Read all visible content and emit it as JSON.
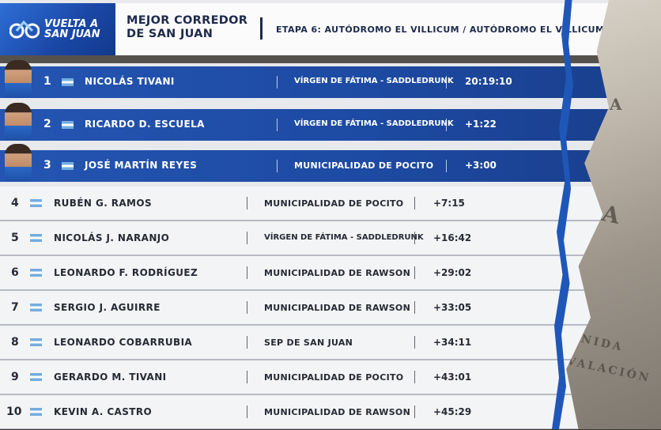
{
  "logo": {
    "line1": "VUELTA A",
    "line2": "SAN JUAN"
  },
  "header": {
    "title_line1": "MEJOR CORREDOR",
    "title_line2": "DE SAN JUAN",
    "stage": "ETAPA 6: AUTÓDROMO EL VILLICUM / AUTÓDROMO EL VILLICUM"
  },
  "background_map": {
    "text1": "MBA",
    "text2": "EGA",
    "text3": "ENIDA",
    "text4": "VALACIÓN"
  },
  "colors": {
    "brand_blue": "#1d4aa2",
    "header_text": "#1d2a4a",
    "flag_blue": "#74acdf"
  },
  "podium": [
    {
      "position": "1",
      "name": "Nicolás Tivani",
      "team": "Vírgen de Fátima - Saddledrunk",
      "time": "20:19:10"
    },
    {
      "position": "2",
      "name": "Ricardo D. Escuela",
      "team": "Vírgen de Fátima - Saddledrunk",
      "time": "+1:22"
    },
    {
      "position": "3",
      "name": "José Martín Reyes",
      "team": "Municipalidad de Pocito",
      "time": "+3:00"
    }
  ],
  "standings": [
    {
      "position": "4",
      "name": "Rubén G. Ramos",
      "team": "Municipalidad de Pocito",
      "time": "+7:15"
    },
    {
      "position": "5",
      "name": "Nicolás J. Naranjo",
      "team": "Vírgen de Fátima - Saddledrunk",
      "time": "+16:42"
    },
    {
      "position": "6",
      "name": "Leonardo F. Rodríguez",
      "team": "Municipalidad de Rawson",
      "time": "+29:02"
    },
    {
      "position": "7",
      "name": "Sergio J. Aguirre",
      "team": "Municipalidad de Rawson",
      "time": "+33:05"
    },
    {
      "position": "8",
      "name": "Leonardo Cobarrubia",
      "team": "SEP de San Juan",
      "time": "+34:11"
    },
    {
      "position": "9",
      "name": "Gerardo M. Tivani",
      "team": "Municipalidad de Pocito",
      "time": "+43:01"
    },
    {
      "position": "10",
      "name": "Kevin A. Castro",
      "team": "Municipalidad de Rawson",
      "time": "+45:29"
    }
  ]
}
